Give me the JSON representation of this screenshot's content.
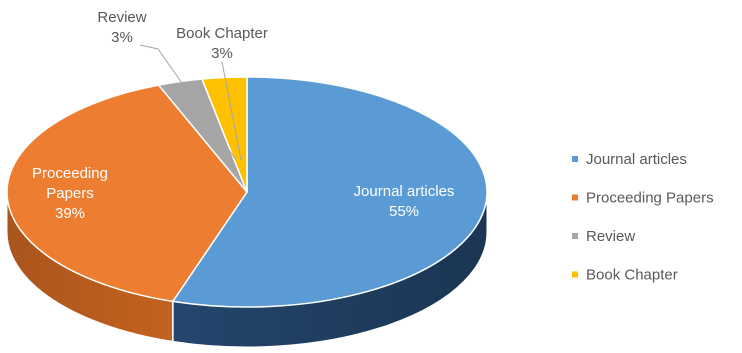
{
  "chart_data": {
    "type": "pie",
    "title": "",
    "style": "3d",
    "categories": [
      "Journal articles",
      "Proceeding Papers",
      "Review",
      "Book Chapter"
    ],
    "values": [
      55,
      39,
      3,
      3
    ],
    "value_labels": [
      "55%",
      "39%",
      "3%",
      "3%"
    ],
    "colors": [
      "#5B9BD5",
      "#ED7D31",
      "#A5A5A5",
      "#FFC000"
    ],
    "legend_position": "right"
  }
}
